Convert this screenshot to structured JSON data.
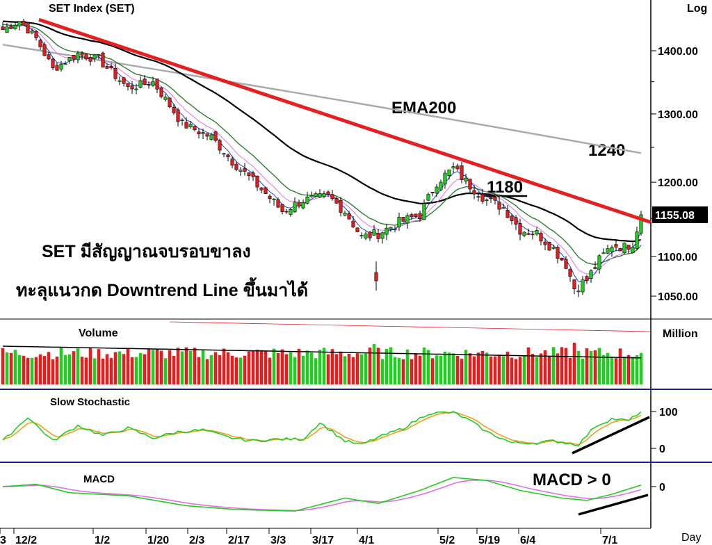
{
  "chart_data": [
    {
      "type": "candlestick",
      "title": "SET  Index  (SET)",
      "scale_label": "Log",
      "price_tag": "1155.08",
      "y_ticks": [
        {
          "v": 1400,
          "label": "1400.00"
        },
        {
          "v": 1300,
          "label": "1300.00"
        },
        {
          "v": 1200,
          "label": "1200.00"
        },
        {
          "v": 1100,
          "label": "1100.00"
        },
        {
          "v": 1050,
          "label": "1050.00"
        }
      ],
      "x_ticks": [
        "3",
        "12/2",
        "1/2",
        "1/20",
        "2/3",
        "2/17",
        "3/3",
        "3/17",
        "4/1",
        "5/2",
        "5/19",
        "6/4",
        "7/1"
      ],
      "x_unit": "Day",
      "anchors": [
        {
          "t": 0,
          "c": 1435
        },
        {
          "t": 4,
          "c": 1450
        },
        {
          "t": 8,
          "c": 1420
        },
        {
          "t": 12,
          "c": 1370
        },
        {
          "t": 18,
          "c": 1395
        },
        {
          "t": 23,
          "c": 1385
        },
        {
          "t": 30,
          "c": 1340
        },
        {
          "t": 36,
          "c": 1350
        },
        {
          "t": 43,
          "c": 1285
        },
        {
          "t": 50,
          "c": 1265
        },
        {
          "t": 55,
          "c": 1230
        },
        {
          "t": 62,
          "c": 1190
        },
        {
          "t": 67,
          "c": 1160
        },
        {
          "t": 72,
          "c": 1175
        },
        {
          "t": 78,
          "c": 1180
        },
        {
          "t": 82,
          "c": 1160
        },
        {
          "t": 86,
          "c": 1125
        },
        {
          "t": 90,
          "c": 1130
        },
        {
          "t": 95,
          "c": 1145
        },
        {
          "t": 100,
          "c": 1155
        },
        {
          "t": 104,
          "c": 1200
        },
        {
          "t": 108,
          "c": 1220
        },
        {
          "t": 112,
          "c": 1195
        },
        {
          "t": 116,
          "c": 1175
        },
        {
          "t": 120,
          "c": 1165
        },
        {
          "t": 124,
          "c": 1135
        },
        {
          "t": 128,
          "c": 1130
        },
        {
          "t": 132,
          "c": 1110
        },
        {
          "t": 135,
          "c": 1090
        },
        {
          "t": 137,
          "c": 1060
        },
        {
          "t": 140,
          "c": 1070
        },
        {
          "t": 143,
          "c": 1095
        },
        {
          "t": 146,
          "c": 1115
        },
        {
          "t": 149,
          "c": 1112
        },
        {
          "t": 151,
          "c": 1118
        },
        {
          "t": 153,
          "c": 1155
        }
      ],
      "annotations": [
        {
          "text": "EMA200"
        },
        {
          "text": "1240"
        },
        {
          "text": "1180"
        },
        {
          "text": "SET มีสัญญาณจบรอบขาลง"
        },
        {
          "text": "ทะลุแนวกด Downtrend Line ขึ้นมาได้"
        }
      ],
      "series": [
        {
          "name": "EMA200",
          "color": "#aaaaaa"
        },
        {
          "color": "#000000"
        },
        {
          "color": "#2e7d32"
        },
        {
          "color": "#e070e0"
        },
        {
          "color": "#1f3fd0"
        },
        {
          "color": "#e52020"
        }
      ]
    },
    {
      "type": "bar",
      "title": "Volume",
      "unit_label": "Million",
      "up_color": "#22cc22",
      "down_color": "#e02020"
    },
    {
      "type": "line",
      "title": "Slow  Stochastic",
      "y_ticks": [
        {
          "v": 100,
          "label": "100"
        },
        {
          "v": 0,
          "label": "0"
        }
      ],
      "anchors": [
        {
          "t": 0,
          "v": 20
        },
        {
          "t": 6,
          "v": 85
        },
        {
          "t": 12,
          "v": 20
        },
        {
          "t": 18,
          "v": 62
        },
        {
          "t": 24,
          "v": 35
        },
        {
          "t": 30,
          "v": 55
        },
        {
          "t": 36,
          "v": 28
        },
        {
          "t": 42,
          "v": 45
        },
        {
          "t": 48,
          "v": 50
        },
        {
          "t": 54,
          "v": 30
        },
        {
          "t": 60,
          "v": 20
        },
        {
          "t": 66,
          "v": 25
        },
        {
          "t": 72,
          "v": 25
        },
        {
          "t": 76,
          "v": 70
        },
        {
          "t": 82,
          "v": 20
        },
        {
          "t": 86,
          "v": 10
        },
        {
          "t": 90,
          "v": 30
        },
        {
          "t": 96,
          "v": 55
        },
        {
          "t": 102,
          "v": 95
        },
        {
          "t": 108,
          "v": 98
        },
        {
          "t": 112,
          "v": 75
        },
        {
          "t": 116,
          "v": 45
        },
        {
          "t": 122,
          "v": 15
        },
        {
          "t": 128,
          "v": 15
        },
        {
          "t": 132,
          "v": 20
        },
        {
          "t": 138,
          "v": 10
        },
        {
          "t": 142,
          "v": 60
        },
        {
          "t": 146,
          "v": 80
        },
        {
          "t": 150,
          "v": 75
        },
        {
          "t": 153,
          "v": 100
        }
      ],
      "series": [
        {
          "color": "#22cc22"
        },
        {
          "color": "#f0a020"
        }
      ]
    },
    {
      "type": "line",
      "title": "MACD",
      "annotation": "MACD > 0",
      "y_ticks": [
        {
          "v": 0,
          "label": "0"
        }
      ],
      "anchors": [
        {
          "t": 0,
          "v": 0
        },
        {
          "t": 8,
          "v": 3
        },
        {
          "t": 16,
          "v": -8
        },
        {
          "t": 30,
          "v": -12
        },
        {
          "t": 44,
          "v": -25
        },
        {
          "t": 56,
          "v": -30
        },
        {
          "t": 70,
          "v": -32
        },
        {
          "t": 82,
          "v": -15
        },
        {
          "t": 90,
          "v": -22
        },
        {
          "t": 100,
          "v": -5
        },
        {
          "t": 108,
          "v": 12
        },
        {
          "t": 116,
          "v": 8
        },
        {
          "t": 124,
          "v": -5
        },
        {
          "t": 134,
          "v": -15
        },
        {
          "t": 140,
          "v": -18
        },
        {
          "t": 146,
          "v": -10
        },
        {
          "t": 153,
          "v": 2
        }
      ],
      "series": [
        {
          "color": "#22cc22"
        },
        {
          "color": "#e070e0"
        }
      ]
    }
  ]
}
